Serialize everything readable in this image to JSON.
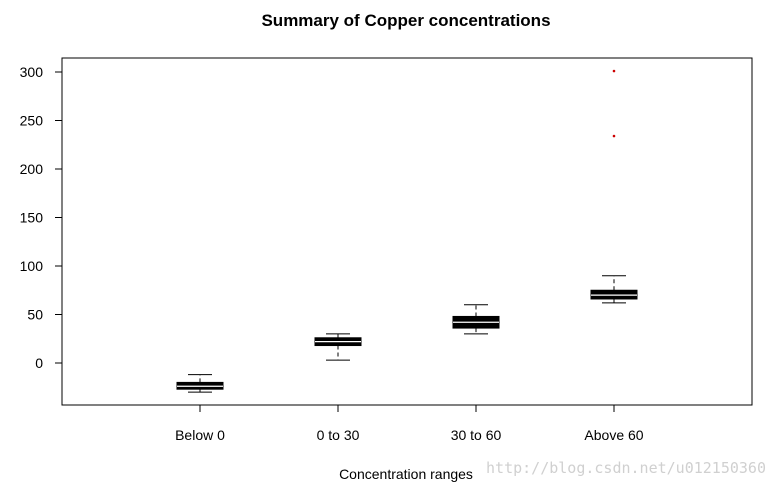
{
  "chart_data": {
    "type": "boxplot",
    "title": "Summary of Copper concentrations",
    "xlabel": "Concentration ranges",
    "ylabel": "",
    "categories": [
      "Below 0",
      "0 to 30",
      "30 to 60",
      "Above 60"
    ],
    "yticks": [
      "0",
      "50",
      "100",
      "150",
      "200",
      "250",
      "300"
    ],
    "ylim": [
      -45,
      312
    ],
    "grid": false,
    "boxes": [
      {
        "category": "Below 0",
        "whisker_low": -30,
        "q1": -27,
        "median": -24,
        "q3": -20,
        "whisker_high": -12,
        "outliers": []
      },
      {
        "category": "0 to 30",
        "whisker_low": 3,
        "q1": 18,
        "median": 22,
        "q3": 26,
        "whisker_high": 30,
        "outliers": []
      },
      {
        "category": "30 to 60",
        "whisker_low": 30,
        "q1": 36,
        "median": 42,
        "q3": 48,
        "whisker_high": 60,
        "outliers": []
      },
      {
        "category": "Above 60",
        "whisker_low": 62,
        "q1": 66,
        "median": 70,
        "q3": 75,
        "whisker_high": 90,
        "outliers": [
          234,
          301
        ]
      }
    ],
    "colors": {
      "box": "#000000",
      "outlier": "#cc0000"
    }
  },
  "watermark": "http://blog.csdn.net/u012150360"
}
